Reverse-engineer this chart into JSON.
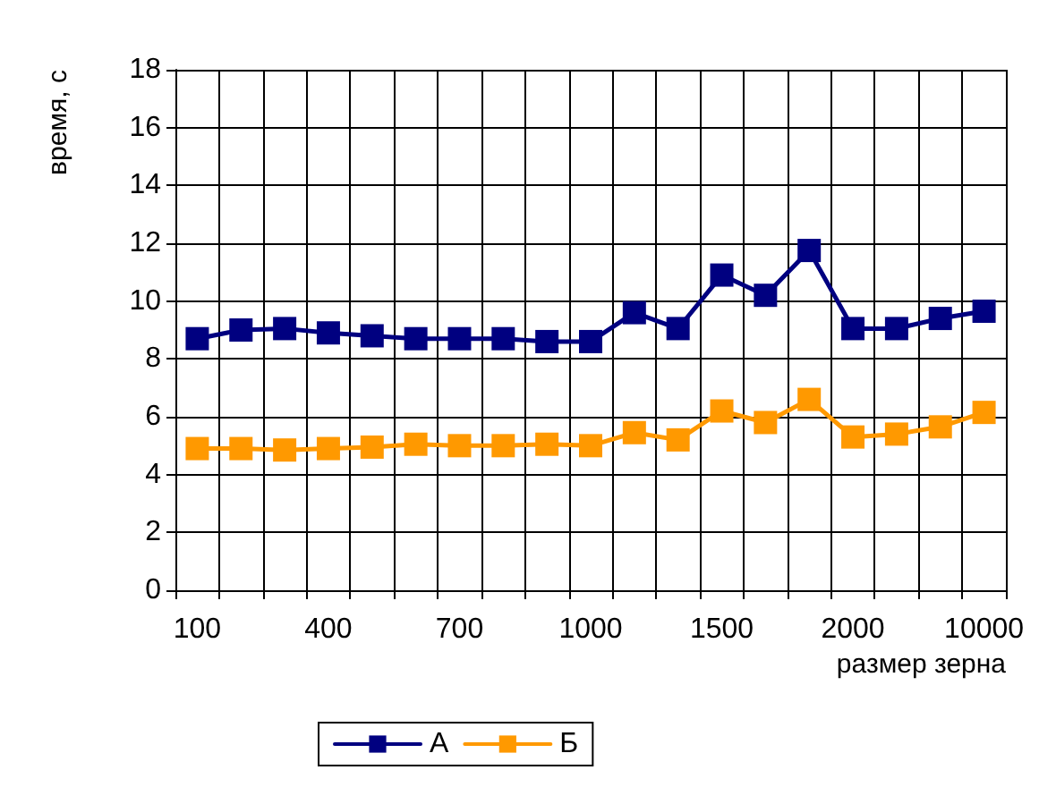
{
  "chart_data": {
    "type": "line",
    "xlabel": "размер зерна",
    "ylabel": "время, с",
    "categories": [
      "100",
      null,
      null,
      "400",
      null,
      null,
      "700",
      null,
      null,
      "1000",
      null,
      null,
      "1500",
      null,
      null,
      "2000",
      null,
      null,
      "10000"
    ],
    "series": [
      {
        "name": "А",
        "color": "#000080",
        "values": [
          8.7,
          9.0,
          9.05,
          8.9,
          8.8,
          8.7,
          8.7,
          8.7,
          8.6,
          8.6,
          9.6,
          9.05,
          10.9,
          10.2,
          11.75,
          9.05,
          9.05,
          9.4,
          9.65
        ]
      },
      {
        "name": "Б",
        "color": "#ff9900",
        "values": [
          4.9,
          4.9,
          4.85,
          4.9,
          4.95,
          5.05,
          5.0,
          5.0,
          5.05,
          5.0,
          5.45,
          5.2,
          6.2,
          5.8,
          6.6,
          5.3,
          5.4,
          5.65,
          6.15
        ]
      }
    ],
    "ylim": [
      0,
      18
    ],
    "yticks": [
      0,
      2,
      4,
      6,
      8,
      10,
      12,
      14,
      16,
      18
    ],
    "grid": true,
    "legend": "bottom",
    "marker": "square",
    "line_style": "solid"
  }
}
